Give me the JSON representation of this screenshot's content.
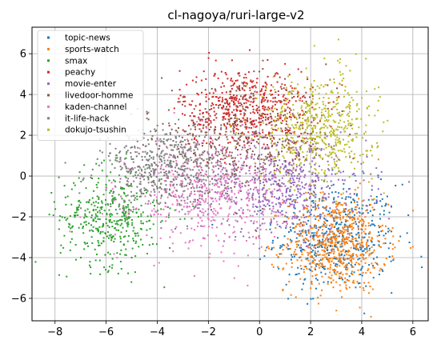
{
  "chart_data": {
    "type": "scatter",
    "title": "cl-nagoya/ruri-large-v2",
    "xlabel": "",
    "ylabel": "",
    "xlim": [
      -8.9,
      6.6
    ],
    "ylim": [
      -7.1,
      7.3
    ],
    "xticks": [
      -8,
      -6,
      -4,
      -2,
      0,
      2,
      4,
      6
    ],
    "yticks": [
      -6,
      -4,
      -2,
      0,
      2,
      4,
      6
    ],
    "xtick_labels": [
      "−8",
      "−6",
      "−4",
      "−2",
      "0",
      "2",
      "4",
      "6"
    ],
    "ytick_labels": [
      "−6",
      "−4",
      "−2",
      "0",
      "2",
      "4",
      "6"
    ],
    "grid": true,
    "legend_position": "top-left",
    "series": [
      {
        "name": "topic-news",
        "color": "#1f77b4",
        "cx": 3.0,
        "cy": -3.0,
        "sx": 1.2,
        "sy": 1.3,
        "n": 500,
        "sample_points": [
          [
            3.5,
            -2.0
          ],
          [
            4.2,
            -3.5
          ],
          [
            1.5,
            -4.5
          ],
          [
            5.0,
            -1.0
          ],
          [
            2.5,
            -3.0
          ]
        ]
      },
      {
        "name": "sports-watch",
        "color": "#ff7f0e",
        "cx": 3.0,
        "cy": -3.3,
        "sx": 1.0,
        "sy": 1.2,
        "n": 650,
        "sample_points": [
          [
            3.0,
            -4.0
          ],
          [
            2.5,
            -3.0
          ],
          [
            4.5,
            -4.5
          ],
          [
            2.0,
            -5.5
          ],
          [
            3.5,
            -2.5
          ]
        ]
      },
      {
        "name": "smax",
        "color": "#2ca02c",
        "cx": -5.8,
        "cy": -2.0,
        "sx": 1.0,
        "sy": 1.2,
        "n": 420,
        "sample_points": [
          [
            -6.5,
            -2.5
          ],
          [
            -5.5,
            -1.5
          ],
          [
            -5.0,
            -4.0
          ],
          [
            -7.5,
            -1.0
          ],
          [
            -5.8,
            -3.0
          ]
        ]
      },
      {
        "name": "peachy",
        "color": "#d62728",
        "cx": -0.5,
        "cy": 3.3,
        "sx": 1.3,
        "sy": 1.0,
        "n": 550,
        "sample_points": [
          [
            -1.0,
            3.5
          ],
          [
            0.5,
            4.0
          ],
          [
            -2.0,
            2.5
          ],
          [
            1.0,
            5.5
          ],
          [
            0.0,
            3.0
          ]
        ]
      },
      {
        "name": "movie-enter",
        "color": "#9467bd",
        "cx": 1.0,
        "cy": -0.5,
        "sx": 1.6,
        "sy": 1.2,
        "n": 550,
        "sample_points": [
          [
            0.5,
            0.0
          ],
          [
            2.0,
            -0.5
          ],
          [
            -1.0,
            0.5
          ],
          [
            1.5,
            -2.0
          ],
          [
            3.0,
            1.0
          ]
        ]
      },
      {
        "name": "livedoor-homme",
        "color": "#8c564b",
        "cx": -0.5,
        "cy": 1.8,
        "sx": 1.7,
        "sy": 1.3,
        "n": 450,
        "sample_points": [
          [
            -1.5,
            2.5
          ],
          [
            0.5,
            1.5
          ],
          [
            -2.5,
            1.0
          ],
          [
            1.0,
            3.0
          ],
          [
            -0.5,
            0.5
          ]
        ]
      },
      {
        "name": "kaden-channel",
        "color": "#e377c2",
        "cx": -2.0,
        "cy": -0.8,
        "sx": 1.5,
        "sy": 1.3,
        "n": 550,
        "sample_points": [
          [
            -2.0,
            -1.0
          ],
          [
            -3.0,
            0.5
          ],
          [
            -1.0,
            -2.5
          ],
          [
            -3.5,
            -3.0
          ],
          [
            -1.5,
            0.0
          ]
        ]
      },
      {
        "name": "it-life-hack",
        "color": "#7f7f7f",
        "cx": -3.6,
        "cy": 0.4,
        "sx": 1.3,
        "sy": 1.0,
        "n": 550,
        "sample_points": [
          [
            -4.0,
            1.0
          ],
          [
            -3.0,
            0.0
          ],
          [
            -5.0,
            -0.5
          ],
          [
            -2.5,
            1.5
          ],
          [
            -3.5,
            0.5
          ]
        ]
      },
      {
        "name": "dokujo-tsushin",
        "color": "#bcbd22",
        "cx": 2.3,
        "cy": 2.4,
        "sx": 1.1,
        "sy": 1.3,
        "n": 550,
        "sample_points": [
          [
            2.5,
            3.0
          ],
          [
            1.5,
            4.5
          ],
          [
            3.0,
            1.5
          ],
          [
            2.0,
            2.0
          ],
          [
            3.5,
            3.5
          ]
        ]
      }
    ]
  }
}
